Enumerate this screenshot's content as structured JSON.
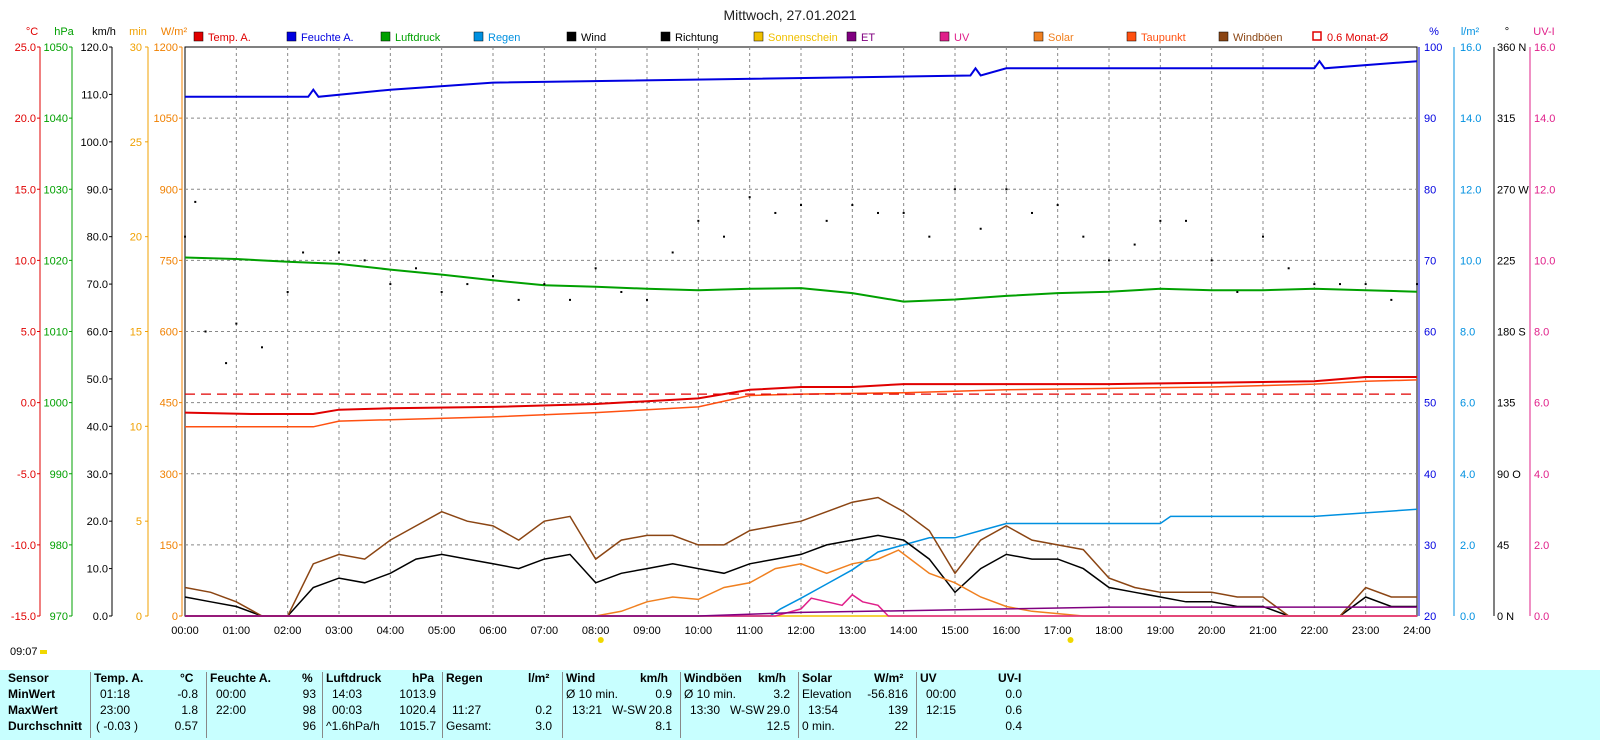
{
  "title": "Mittwoch, 27.01.2021",
  "time_label": "09:07",
  "legend": [
    {
      "label": "Temp. A.",
      "color": "#e00000",
      "style": "filled"
    },
    {
      "label": "Feuchte A.",
      "color": "#0000e0",
      "style": "filled"
    },
    {
      "label": "Luftdruck",
      "color": "#00a000",
      "style": "filled"
    },
    {
      "label": "Regen",
      "color": "#0090e0",
      "style": "filled"
    },
    {
      "label": "Wind",
      "color": "#000000",
      "style": "filled"
    },
    {
      "label": "Richtung",
      "color": "#000000",
      "style": "filled"
    },
    {
      "label": "Sonnenschein",
      "color": "#f0c000",
      "style": "filled"
    },
    {
      "label": "ET",
      "color": "#800080",
      "style": "filled"
    },
    {
      "label": "UV",
      "color": "#e0208a",
      "style": "filled"
    },
    {
      "label": "Solar",
      "color": "#f08020",
      "style": "filled"
    },
    {
      "label": "Taupunkt",
      "color": "#ff5010",
      "style": "filled"
    },
    {
      "label": "Windböen",
      "color": "#8b4513",
      "style": "filled"
    },
    {
      "label": "0.6 Monat-Ø",
      "color": "#e00000",
      "style": "outline"
    }
  ],
  "left_axes": [
    {
      "unit": "°C",
      "color": "#e00000",
      "ticks": [
        "25.0",
        "20.0",
        "15.0",
        "10.0",
        "5.0",
        "0.0",
        "-5.0",
        "-10.0",
        "-15.0"
      ]
    },
    {
      "unit": "hPa",
      "color": "#00a000",
      "ticks": [
        "1050",
        "1040",
        "1030",
        "1020",
        "1010",
        "1000",
        "990",
        "980",
        "970"
      ]
    },
    {
      "unit": "km/h",
      "color": "#000000",
      "ticks": [
        "120.0",
        "110.0",
        "100.0",
        "90.0",
        "80.0",
        "70.0",
        "60.0",
        "50.0",
        "40.0",
        "30.0",
        "20.0",
        "10.0",
        "0.0"
      ]
    },
    {
      "unit": "min",
      "color": "#f0a000",
      "ticks": [
        "30",
        "25",
        "20",
        "15",
        "10",
        "5",
        "0"
      ]
    },
    {
      "unit": "W/m²",
      "color": "#f08000",
      "ticks": [
        "1200",
        "1050",
        "900",
        "750",
        "600",
        "450",
        "300",
        "150",
        "0"
      ]
    }
  ],
  "right_axes": [
    {
      "unit": "%",
      "color": "#0000e0",
      "ticks": [
        "100",
        "90",
        "80",
        "70",
        "60",
        "50",
        "40",
        "30",
        "20"
      ]
    },
    {
      "unit": "l/m²",
      "color": "#0090e0",
      "ticks": [
        "16.0",
        "14.0",
        "12.0",
        "10.0",
        "8.0",
        "6.0",
        "4.0",
        "2.0",
        "0.0"
      ]
    },
    {
      "unit": "°",
      "color": "#000000",
      "ticks": [
        "360 N",
        "315",
        "270 W",
        "225",
        "180 S",
        "135",
        "90 O",
        "45",
        "0 N"
      ]
    },
    {
      "unit": "UV-I",
      "color": "#e0208a",
      "ticks": [
        "16.0",
        "14.0",
        "12.0",
        "10.0",
        "8.0",
        "6.0",
        "4.0",
        "2.0",
        "0.0"
      ]
    }
  ],
  "x_ticks": [
    "00:00",
    "01:00",
    "02:00",
    "03:00",
    "04:00",
    "05:00",
    "06:00",
    "07:00",
    "08:00",
    "09:00",
    "10:00",
    "11:00",
    "12:00",
    "13:00",
    "14:00",
    "15:00",
    "16:00",
    "17:00",
    "18:00",
    "19:00",
    "20:00",
    "21:00",
    "22:00",
    "23:00",
    "24:00"
  ],
  "chart_data": {
    "type": "line",
    "title": "Mittwoch, 27.01.2021",
    "x_unit": "hours",
    "x_range": [
      0,
      24
    ],
    "grid": true,
    "legend_position": "top",
    "series": [
      {
        "name": "Temp. A.",
        "color": "#e00000",
        "axis": "°C",
        "ylim": [
          -15,
          25
        ],
        "x": [
          0,
          1.3,
          2.5,
          3,
          4,
          6,
          8,
          9,
          10,
          11,
          12,
          13,
          14,
          16,
          18,
          20,
          22,
          23,
          24
        ],
        "y": [
          -0.7,
          -0.8,
          -0.8,
          -0.5,
          -0.4,
          -0.3,
          -0.1,
          0.1,
          0.3,
          0.9,
          1.1,
          1.1,
          1.3,
          1.3,
          1.3,
          1.4,
          1.5,
          1.8,
          1.8
        ]
      },
      {
        "name": "Taupunkt",
        "color": "#ff5010",
        "axis": "°C",
        "ylim": [
          -15,
          25
        ],
        "x": [
          0,
          2.5,
          3,
          4,
          6,
          8,
          9,
          10,
          11,
          12,
          14,
          16,
          18,
          20,
          22,
          23,
          24
        ],
        "y": [
          -1.7,
          -1.7,
          -1.3,
          -1.2,
          -1.0,
          -0.7,
          -0.5,
          -0.3,
          0.5,
          0.6,
          0.7,
          0.9,
          1.0,
          1.1,
          1.3,
          1.5,
          1.6
        ]
      },
      {
        "name": "0.6 Monat-Ø",
        "color": "#e00000",
        "axis": "°C",
        "ylim": [
          -15,
          25
        ],
        "x": [
          0,
          24
        ],
        "y": [
          0.6,
          0.6
        ]
      },
      {
        "name": "Feuchte A.",
        "color": "#0000e0",
        "axis": "%",
        "ylim": [
          20,
          100
        ],
        "x": [
          0,
          2.4,
          2.5,
          2.6,
          4,
          6,
          15.3,
          15.4,
          15.5,
          16,
          22,
          22.1,
          22.2,
          24
        ],
        "y": [
          93,
          93,
          94,
          93,
          94,
          95,
          96,
          97,
          96,
          97,
          97,
          98,
          97,
          98
        ]
      },
      {
        "name": "Luftdruck",
        "color": "#00a000",
        "axis": "hPa",
        "ylim": [
          970,
          1050
        ],
        "x": [
          0,
          1,
          2,
          3,
          4,
          5,
          6,
          7,
          8,
          9,
          10,
          11,
          12,
          13,
          14,
          15,
          16,
          17,
          18,
          19,
          20,
          21,
          22,
          23,
          24
        ],
        "y": [
          1020.4,
          1020.2,
          1019.8,
          1019.5,
          1018.7,
          1018.0,
          1017.2,
          1016.5,
          1016.3,
          1016.0,
          1015.8,
          1016.0,
          1016.1,
          1015.4,
          1014.2,
          1014.5,
          1015.0,
          1015.4,
          1015.6,
          1016.0,
          1015.8,
          1015.8,
          1016.0,
          1015.8,
          1015.6
        ]
      },
      {
        "name": "Regen",
        "color": "#0090e0",
        "axis": "l/m²",
        "ylim": [
          0,
          16
        ],
        "x": [
          0,
          11.4,
          11.6,
          12,
          12.5,
          13,
          13.5,
          14,
          14.5,
          15,
          15.5,
          16,
          17,
          19,
          19.2,
          20,
          22,
          24
        ],
        "y": [
          0,
          0,
          0.2,
          0.5,
          0.9,
          1.3,
          1.8,
          2.0,
          2.2,
          2.2,
          2.4,
          2.6,
          2.6,
          2.6,
          2.8,
          2.8,
          2.8,
          3.0
        ]
      },
      {
        "name": "Wind",
        "color": "#000000",
        "axis": "km/h",
        "ylim": [
          0,
          120
        ],
        "x": [
          0,
          0.5,
          1,
          1.5,
          2,
          2.5,
          3,
          3.5,
          4,
          4.5,
          5,
          5.5,
          6,
          6.5,
          7,
          7.5,
          8,
          8.5,
          9,
          9.5,
          10,
          10.5,
          11,
          11.5,
          12,
          12.5,
          13,
          13.5,
          14,
          14.5,
          15,
          15.5,
          16,
          16.5,
          17,
          17.5,
          18,
          18.5,
          19,
          19.5,
          20,
          20.5,
          21,
          21.5,
          22,
          22.5,
          23,
          23.5,
          24
        ],
        "y": [
          4,
          3,
          2,
          0,
          0,
          6,
          8,
          7,
          9,
          12,
          13,
          12,
          11,
          10,
          12,
          13,
          7,
          9,
          10,
          11,
          10,
          9,
          11,
          12,
          13,
          15,
          16,
          17,
          16,
          12,
          5,
          10,
          13,
          12,
          12,
          10,
          6,
          5,
          4,
          3,
          3,
          2,
          2,
          0,
          0,
          0,
          4,
          2,
          2
        ]
      },
      {
        "name": "Windböen",
        "color": "#8b4513",
        "axis": "km/h",
        "ylim": [
          0,
          120
        ],
        "x": [
          0,
          0.5,
          1,
          1.5,
          2,
          2.5,
          3,
          3.5,
          4,
          4.5,
          5,
          5.5,
          6,
          6.5,
          7,
          7.5,
          8,
          8.5,
          9,
          9.5,
          10,
          10.5,
          11,
          11.5,
          12,
          12.5,
          13,
          13.5,
          14,
          14.5,
          15,
          15.5,
          16,
          16.5,
          17,
          17.5,
          18,
          18.5,
          19,
          19.5,
          20,
          20.5,
          21,
          21.5,
          22,
          22.5,
          23,
          23.5,
          24
        ],
        "y": [
          6,
          5,
          3,
          0,
          0,
          11,
          13,
          12,
          16,
          19,
          22,
          20,
          19,
          16,
          20,
          21,
          12,
          16,
          17,
          17,
          15,
          15,
          18,
          19,
          20,
          22,
          24,
          25,
          22,
          18,
          9,
          16,
          19,
          16,
          15,
          14,
          8,
          6,
          5,
          5,
          5,
          4,
          4,
          0,
          0,
          0,
          6,
          4,
          4
        ]
      },
      {
        "name": "Solar",
        "color": "#f08020",
        "axis": "W/m²",
        "ylim": [
          0,
          1200
        ],
        "x": [
          0,
          8,
          8.5,
          9,
          9.5,
          10,
          10.5,
          11,
          11.5,
          12,
          12.5,
          13,
          13.5,
          13.9,
          14.5,
          15,
          15.5,
          16,
          16.5,
          17,
          17.5,
          24
        ],
        "y": [
          0,
          0,
          10,
          30,
          40,
          35,
          60,
          70,
          100,
          110,
          90,
          110,
          120,
          139,
          90,
          70,
          40,
          20,
          10,
          5,
          0,
          0
        ]
      },
      {
        "name": "Sonnenschein",
        "color": "#f0c000",
        "axis": "min",
        "ylim": [
          0,
          30
        ],
        "x": [
          0,
          24
        ],
        "y": [
          0,
          0
        ]
      },
      {
        "name": "UV",
        "color": "#e0208a",
        "axis": "UV-I",
        "ylim": [
          0,
          16
        ],
        "x": [
          0,
          11.5,
          12,
          12.2,
          12.8,
          13,
          13.2,
          13.5,
          13.7,
          24
        ],
        "y": [
          0,
          0,
          0.2,
          0.5,
          0.3,
          0.6,
          0.4,
          0.3,
          0,
          0
        ]
      },
      {
        "name": "ET",
        "color": "#800080",
        "axis": "l/m²",
        "ylim": [
          0,
          16
        ],
        "x": [
          0,
          10,
          12,
          14,
          16,
          18,
          20,
          24
        ],
        "y": [
          0,
          0,
          0.1,
          0.15,
          0.2,
          0.25,
          0.25,
          0.25
        ]
      },
      {
        "name": "Richtung",
        "color": "#000000",
        "axis": "°",
        "ylim": [
          0,
          360
        ],
        "type": "scatter",
        "x": [
          0,
          0.2,
          0.4,
          0.8,
          1,
          1.5,
          2,
          2.3,
          3,
          3.5,
          4,
          4.5,
          5,
          5.5,
          6,
          6.5,
          7,
          7.5,
          8,
          8.5,
          9,
          9.5,
          10,
          10.5,
          11,
          11.5,
          12,
          12.5,
          13,
          13.5,
          14,
          14.5,
          15,
          15.5,
          16,
          16.5,
          17,
          17.5,
          18,
          18.5,
          19,
          19.5,
          20,
          20.5,
          21,
          21.5,
          22,
          22.5,
          23,
          23.5,
          24
        ],
        "y": [
          240,
          262,
          180,
          160,
          185,
          170,
          205,
          230,
          230,
          225,
          210,
          220,
          205,
          210,
          215,
          200,
          210,
          200,
          220,
          205,
          200,
          230,
          250,
          240,
          265,
          255,
          260,
          250,
          260,
          255,
          255,
          240,
          270,
          245,
          270,
          255,
          260,
          240,
          225,
          235,
          250,
          250,
          225,
          205,
          240,
          220,
          210,
          210,
          210,
          200,
          210
        ]
      }
    ]
  },
  "stats": {
    "headers": {
      "sensor": "Sensor",
      "temp": "Temp. A.",
      "temp_unit": "°C",
      "hum": "Feuchte A.",
      "hum_unit": "%",
      "press": "Luftdruck",
      "press_unit": "hPa",
      "rain": "Regen",
      "rain_unit": "l/m²",
      "wind": "Wind",
      "wind_unit": "km/h",
      "gust": "Windböen",
      "gust_unit": "km/h",
      "solar": "Solar",
      "solar_unit": "W/m²",
      "uv": "UV",
      "uv_unit": "UV-I"
    },
    "row_labels": [
      "MinWert",
      "MaxWert",
      "Durchschnitt"
    ],
    "temp": [
      [
        "01:18",
        "-0.8"
      ],
      [
        "23:00",
        "1.8"
      ],
      [
        "( -0.03 )",
        "0.57"
      ]
    ],
    "hum": [
      [
        "00:00",
        "93"
      ],
      [
        "22:00",
        "98"
      ],
      [
        "",
        "96"
      ]
    ],
    "press": [
      [
        "14:03",
        "1013.9"
      ],
      [
        "00:03",
        "1020.4"
      ],
      [
        "^1.6hPa/h",
        "1015.7"
      ]
    ],
    "rain": [
      [
        "",
        ""
      ],
      [
        "11:27",
        "0.2"
      ],
      [
        "Gesamt:",
        "3.0"
      ]
    ],
    "wind": [
      [
        "Ø 10 min.",
        "",
        "0.9"
      ],
      [
        "13:21",
        "W-SW",
        "20.8"
      ],
      [
        "",
        "",
        "8.1"
      ]
    ],
    "gust": [
      [
        "Ø 10 min.",
        "",
        "3.2"
      ],
      [
        "13:30",
        "W-SW",
        "29.0"
      ],
      [
        "",
        "",
        "12.5"
      ]
    ],
    "solar": [
      [
        "Elevation",
        "-56.816"
      ],
      [
        "13:54",
        "139"
      ],
      [
        "0 min.",
        "22"
      ]
    ],
    "uv": [
      [
        "00:00",
        "0.0"
      ],
      [
        "12:15",
        "0.6"
      ],
      [
        "",
        "0.4"
      ]
    ]
  }
}
